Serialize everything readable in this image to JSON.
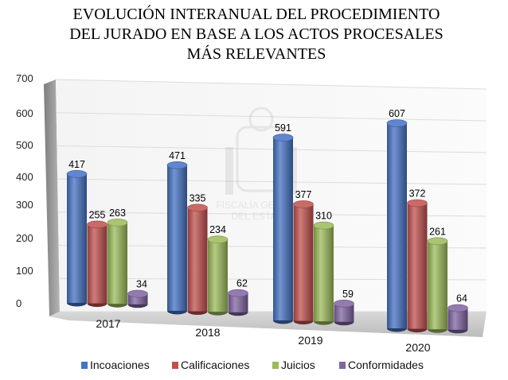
{
  "chart_data": {
    "type": "bar",
    "title_lines": [
      "EVOLUCIÓN INTERANUAL DEL PROCEDIMIENTO",
      "DEL JURADO EN BASE A LOS ACTOS PROCESALES",
      "MÁS RELEVANTES"
    ],
    "categories": [
      "2017",
      "2018",
      "2019",
      "2020"
    ],
    "series": [
      {
        "name": "Incoaciones",
        "color": "#4472c4",
        "values": [
          417,
          471,
          591,
          607
        ]
      },
      {
        "name": "Calificaciones",
        "color": "#c0504d",
        "values": [
          255,
          335,
          377,
          372
        ]
      },
      {
        "name": "Juicios",
        "color": "#9bbb59",
        "values": [
          263,
          234,
          310,
          261
        ]
      },
      {
        "name": "Conformidades",
        "color": "#8064a2",
        "values": [
          34,
          62,
          59,
          64
        ]
      }
    ],
    "y_ticks": [
      "0",
      "100",
      "200",
      "300",
      "400",
      "500",
      "600",
      "700"
    ],
    "ylim": [
      0,
      700
    ],
    "grid": true,
    "legend_position": "bottom",
    "style": "3d-cylinder-bars-perspective"
  },
  "watermark_text": [
    "FISCALÍA GENERAL",
    "DEL ESTADO"
  ]
}
